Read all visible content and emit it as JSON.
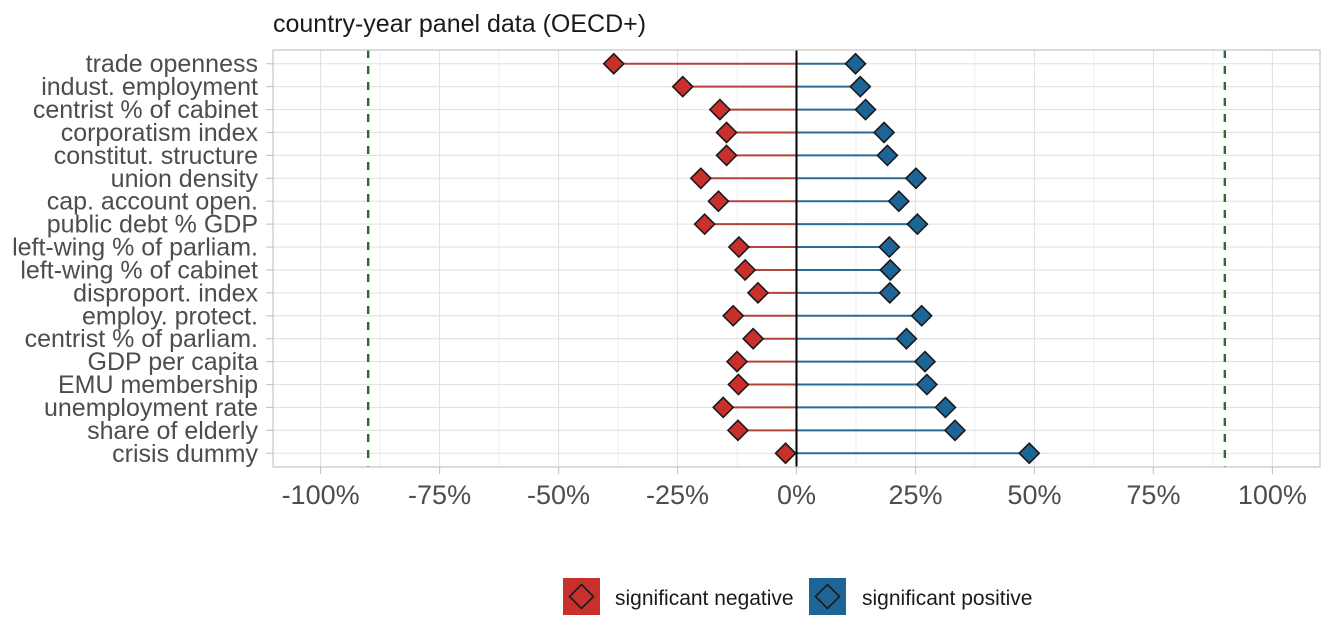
{
  "chart_data": {
    "type": "scatter",
    "subtype": "dumbbell",
    "title": "country-year panel data (OECD+)",
    "xlabel": "",
    "ylabel": "",
    "xlim": [
      -110,
      110
    ],
    "x_ticks": [
      -100,
      -75,
      -50,
      -25,
      0,
      25,
      50,
      75,
      100
    ],
    "x_tick_labels": [
      "-100%",
      "-75%",
      "-50%",
      "-25%",
      "0%",
      "25%",
      "50%",
      "75%",
      "100%"
    ],
    "x_unit": "%",
    "grid": true,
    "categories": [
      "trade openness",
      "indust. employment",
      "centrist % of cabinet",
      "corporatism index",
      "constitut. structure",
      "union density",
      "cap. account open.",
      "public debt % GDP",
      "left-wing % of parliam.",
      "left-wing % of cabinet",
      "disproport. index",
      "employ. protect.",
      "centrist % of parliam.",
      "GDP per capita",
      "EMU membership",
      "unemployment rate",
      "share of elderly",
      "crisis dummy"
    ],
    "series": [
      {
        "name": "significant negative",
        "color": "#c9302c",
        "line_color": "#b5423b",
        "marker": "diamond",
        "values": [
          -38.4,
          -23.9,
          -16.1,
          -14.7,
          -14.7,
          -20.1,
          -16.4,
          -19.3,
          -12.1,
          -10.8,
          -8.1,
          -13.3,
          -9.1,
          -12.5,
          -12.2,
          -15.4,
          -12.3,
          -2.3
        ]
      },
      {
        "name": "significant positive",
        "color": "#1d6596",
        "line_color": "#2b6b93",
        "marker": "diamond",
        "values": [
          12.4,
          13.4,
          14.5,
          18.4,
          19.1,
          25.1,
          21.5,
          25.4,
          19.5,
          19.7,
          19.6,
          26.3,
          23.1,
          27.0,
          27.4,
          31.3,
          33.3,
          48.9
        ]
      }
    ],
    "reference_lines": [
      {
        "x": -90,
        "style": "dashed",
        "color": "#2e6b30"
      },
      {
        "x": 90,
        "style": "dashed",
        "color": "#2e6b30"
      },
      {
        "x": 0,
        "style": "solid",
        "color": "#000000"
      }
    ],
    "legend": {
      "position": "bottom"
    }
  }
}
